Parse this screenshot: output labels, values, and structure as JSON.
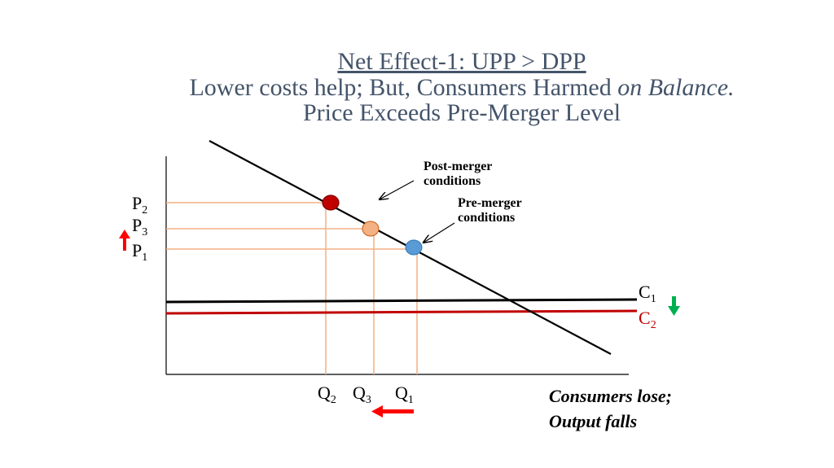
{
  "title": {
    "line1": "Net Effect-1: UPP > DPP",
    "line2_main": "Lower costs help; But, Consumers Harmed ",
    "line2_italic": "on Balance.",
    "line3": "Price Exceeds Pre-Merger Level"
  },
  "labels": {
    "p2": "P",
    "p2_sub": "2",
    "p3": "P",
    "p3_sub": "3",
    "p1": "P",
    "p1_sub": "1",
    "q2": "Q",
    "q2_sub": "2",
    "q3": "Q",
    "q3_sub": "3",
    "q1": "Q",
    "q1_sub": "1",
    "c1": "C",
    "c1_sub": "1",
    "c2": "C",
    "c2_sub": "2"
  },
  "annotations": {
    "post_merger_1": "Post-merger",
    "post_merger_2": "conditions",
    "pre_merger_1": "Pre-merger",
    "pre_merger_2": "conditions"
  },
  "notes": {
    "line1": "Consumers lose;",
    "line2": "Output falls"
  },
  "colors": {
    "title": "#44546a",
    "guide": "#f4b183",
    "c2": "#c00000",
    "point_post": "#c00000",
    "point_mid": "#f4b183",
    "point_pre": "#5b9bd5",
    "arrow_up": "#ff0000",
    "arrow_left": "#ff0000",
    "arrow_down": "#00b050"
  }
}
